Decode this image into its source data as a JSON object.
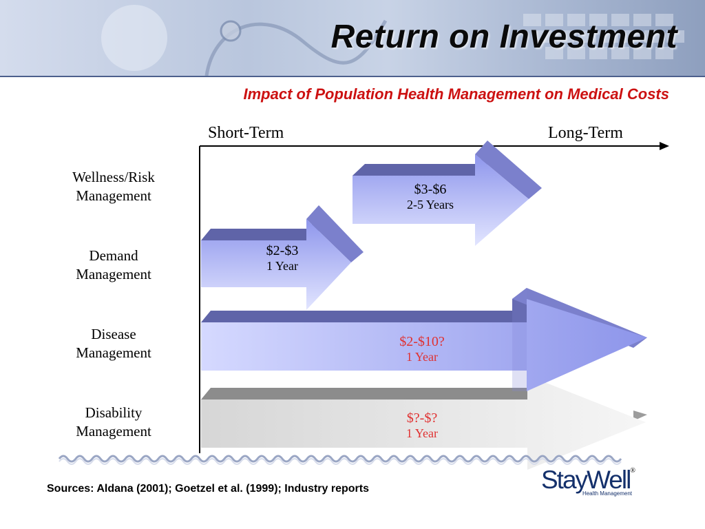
{
  "title": "Return on Investment",
  "subtitle": "Impact of Population Health Management on Medical Costs",
  "axis": {
    "start_label": "Short-Term",
    "end_label": "Long-Term"
  },
  "rows": [
    {
      "label_line1": "Wellness/Risk",
      "label_line2": "Management",
      "value": "$3-$6",
      "duration": "2-5 Years",
      "text_color": "#000000"
    },
    {
      "label_line1": "Demand",
      "label_line2": "Management",
      "value": "$2-$3",
      "duration": "1 Year",
      "text_color": "#000000"
    },
    {
      "label_line1": "Disease",
      "label_line2": "Management",
      "value": "$2-$10?",
      "duration": "1 Year",
      "text_color": "#e03131"
    },
    {
      "label_line1": "Disability",
      "label_line2": "Management",
      "value": "$?-$?",
      "duration": "1 Year",
      "text_color": "#e03131"
    }
  ],
  "colors": {
    "arrow_face": "#a9b0f2",
    "arrow_top": "#5f64a8",
    "arrow_side": "#7b80cc",
    "gray_face": "#e2e2e2",
    "gray_top": "#8f8f8f",
    "title_red": "#cc1111"
  },
  "sources": "Sources: Aldana (2001); Goetzel et al. (1999); Industry reports",
  "logo": {
    "brand": "StayWell",
    "registered": "®",
    "tagline": "Health Management"
  }
}
